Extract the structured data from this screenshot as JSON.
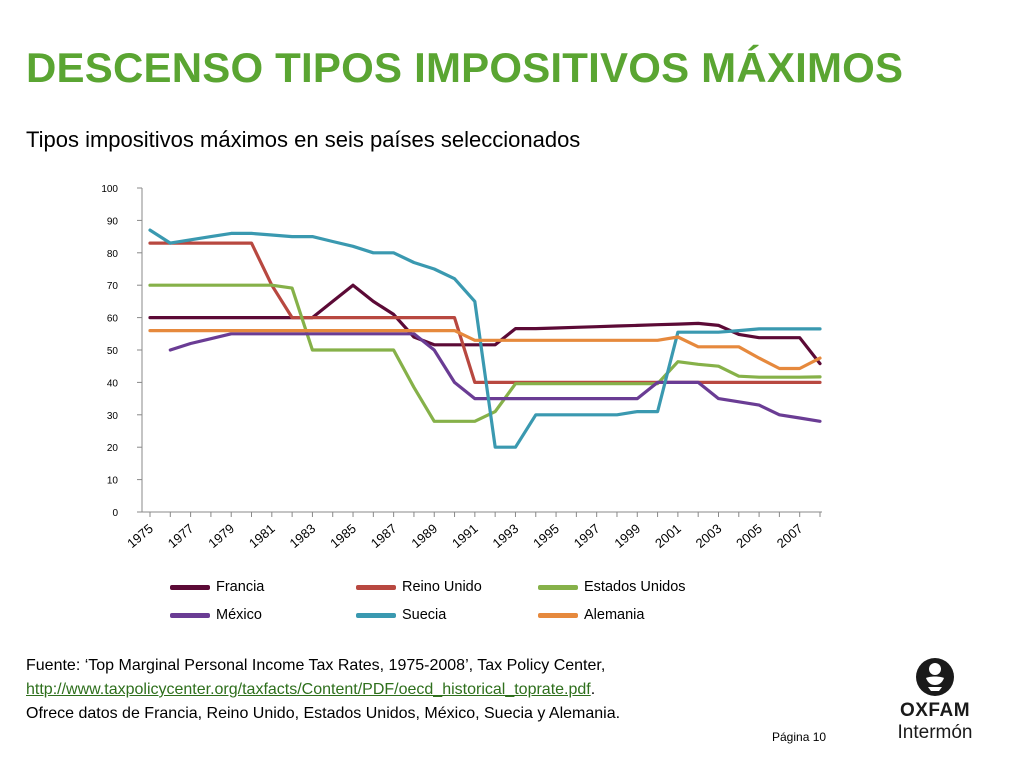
{
  "header": {
    "title": "DESCENSO TIPOS IMPOSITIVOS MÁXIMOS",
    "subtitle": "Tipos impositivos máximos en seis países seleccionados"
  },
  "colors": {
    "title": "#5aa532",
    "axis": "#888888",
    "link": "#2e6f1c"
  },
  "chart_data": {
    "type": "line",
    "title": "",
    "xlabel": "",
    "ylabel": "",
    "ylim": [
      0,
      100
    ],
    "yticks": [
      0,
      10,
      20,
      30,
      40,
      50,
      60,
      70,
      80,
      90,
      100
    ],
    "xlim": [
      1975,
      2008
    ],
    "x_tick_labels": [
      "1975",
      "1977",
      "1979",
      "1981",
      "1983",
      "1985",
      "1987",
      "1989",
      "1991",
      "1993",
      "1995",
      "1997",
      "1999",
      "2001",
      "2003",
      "2005",
      "2007"
    ],
    "grid": false,
    "legend_position": "bottom",
    "x": [
      1975,
      1976,
      1977,
      1978,
      1979,
      1980,
      1981,
      1982,
      1983,
      1984,
      1985,
      1986,
      1987,
      1988,
      1989,
      1990,
      1991,
      1992,
      1993,
      1994,
      1995,
      1996,
      1997,
      1998,
      1999,
      2000,
      2001,
      2002,
      2003,
      2004,
      2005,
      2006,
      2007,
      2008
    ],
    "series": [
      {
        "name": "Francia",
        "color": "#5c0a36",
        "values": [
          60,
          60,
          60,
          60,
          60,
          60,
          60,
          60,
          60,
          65,
          70,
          65,
          61,
          54,
          51.6,
          51.6,
          51.6,
          51.6,
          56.6,
          56.6,
          56.8,
          57,
          57.2,
          57.4,
          57.6,
          57.8,
          58,
          58.2,
          57.6,
          54.8,
          53.8,
          53.8,
          53.8,
          45.8
        ]
      },
      {
        "name": "Reino Unido",
        "color": "#b84840",
        "values": [
          83,
          83,
          83,
          83,
          83,
          83,
          70,
          60,
          60,
          60,
          60,
          60,
          60,
          60,
          60,
          60,
          40,
          40,
          40,
          40,
          40,
          40,
          40,
          40,
          40,
          40,
          40,
          40,
          40,
          40,
          40,
          40,
          40,
          40
        ]
      },
      {
        "name": "Estados Unidos",
        "color": "#86b149",
        "values": [
          70,
          70,
          70,
          70,
          70,
          70,
          70,
          69.1,
          50,
          50,
          50,
          50,
          50,
          38.5,
          28,
          28,
          28,
          31,
          39.6,
          39.6,
          39.6,
          39.6,
          39.6,
          39.6,
          39.6,
          39.6,
          46.4,
          45.6,
          45,
          41.9,
          41.6,
          41.6,
          41.6,
          41.7
        ]
      },
      {
        "name": "México",
        "color": "#6a3c94",
        "values": [
          null,
          50,
          52,
          53.5,
          55,
          55,
          55,
          55,
          55,
          55,
          55,
          55,
          55,
          55,
          50,
          40,
          35,
          35,
          35,
          35,
          35,
          35,
          35,
          35,
          35,
          40,
          40,
          40,
          35,
          34,
          33,
          30,
          29,
          28
        ]
      },
      {
        "name": "Suecia",
        "color": "#3a99b0",
        "values": [
          87,
          83,
          84,
          85,
          86,
          86,
          85.5,
          85,
          85,
          83.5,
          82,
          80,
          80,
          77,
          75,
          72,
          65,
          20,
          20,
          30,
          30,
          30,
          30,
          30,
          31,
          31,
          55.5,
          55.5,
          55.5,
          56,
          56.5,
          56.5,
          56.5,
          56.5
        ]
      },
      {
        "name": "Alemania",
        "color": "#e6893d",
        "values": [
          56,
          56,
          56,
          56,
          56,
          56,
          56,
          56,
          56,
          56,
          56,
          56,
          56,
          56,
          56,
          56,
          53,
          53,
          53,
          53,
          53,
          53,
          53,
          53,
          53,
          53,
          54,
          51,
          51,
          51,
          47.5,
          44.3,
          44.3,
          47.5
        ]
      }
    ]
  },
  "source": {
    "line1": "Fuente: ‘Top Marginal Personal Income Tax Rates, 1975-2008’, Tax Policy Center,",
    "link": "http://www.taxpolicycenter.org/taxfacts/Content/PDF/oecd_historical_toprate.pdf",
    "link_suffix": ".",
    "line3": "Ofrece datos de Francia, Reino Unido, Estados Unidos, México, Suecia y Alemania."
  },
  "footer": {
    "page": "Página 10"
  },
  "logo": {
    "name": "OXFAM",
    "subname": "Intermón",
    "icon": "oxfam-logo-icon"
  }
}
